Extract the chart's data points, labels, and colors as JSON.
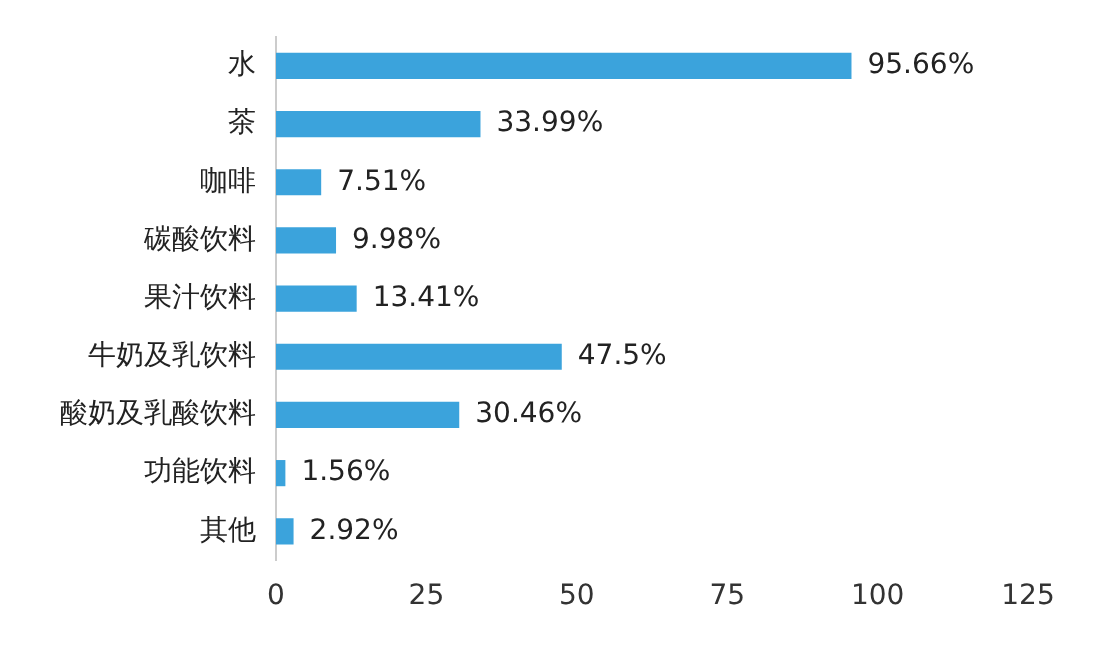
{
  "chart_data": {
    "type": "bar",
    "orientation": "horizontal",
    "categories": [
      "水",
      "茶",
      "咖啡",
      "碳酸饮料",
      "果汁饮料",
      "牛奶及乳饮料",
      "酸奶及乳酸饮料",
      "功能饮料",
      "其他"
    ],
    "values": [
      95.66,
      33.99,
      7.51,
      9.98,
      13.41,
      47.5,
      30.46,
      1.56,
      2.92
    ],
    "value_labels": [
      "95.66%",
      "33.99%",
      "7.51%",
      "9.98%",
      "13.41%",
      "47.5%",
      "30.46%",
      "1.56%",
      "2.92%"
    ],
    "color": "#3ba3dc",
    "xlim": [
      0,
      125
    ],
    "xticks": [
      0,
      25,
      50,
      75,
      100,
      125
    ],
    "grid": false,
    "legend": false
  }
}
